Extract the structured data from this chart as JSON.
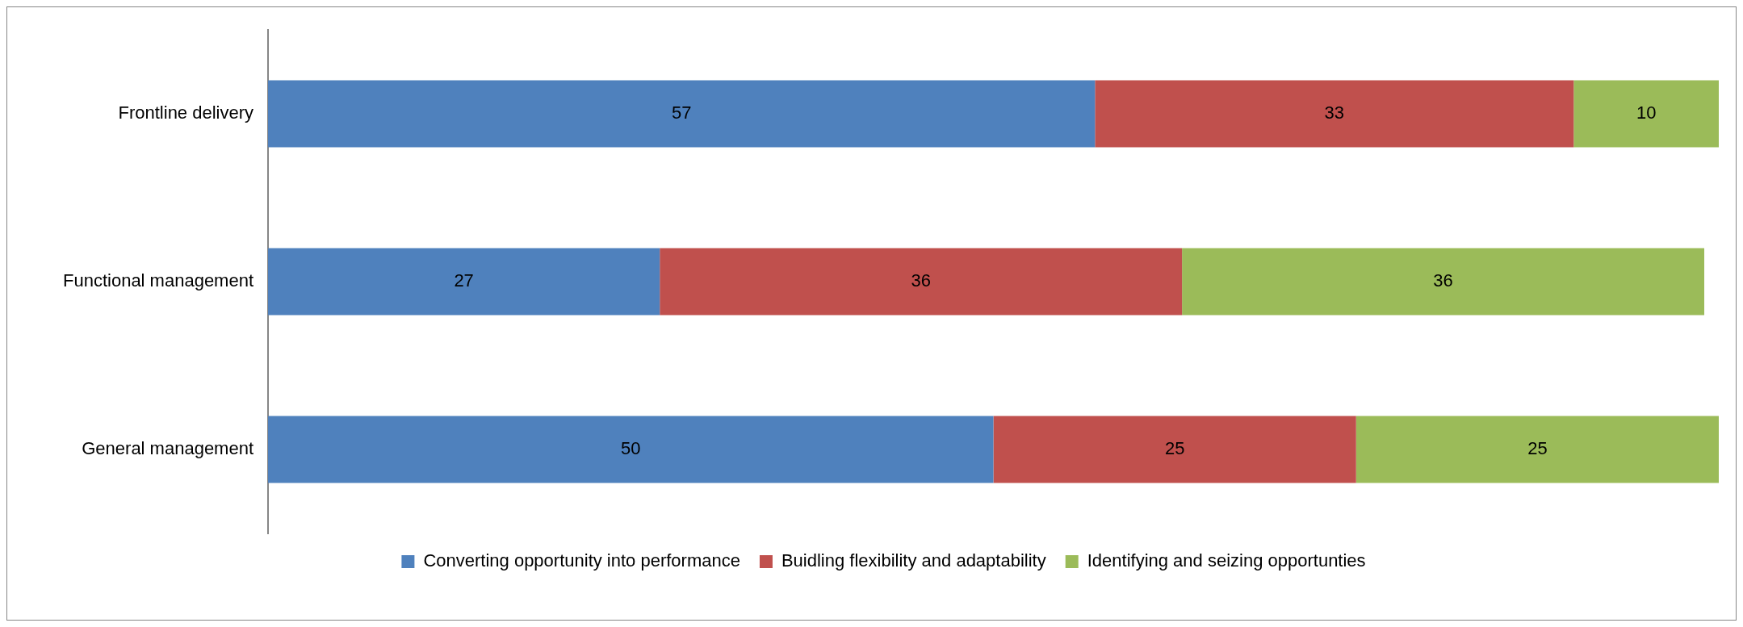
{
  "chart_data": {
    "type": "bar",
    "orientation": "horizontal",
    "stacked": true,
    "categories": [
      "Frontline delivery",
      "Functional management",
      "General management"
    ],
    "series": [
      {
        "name": "Converting opportunity into performance",
        "color": "#4f81bd",
        "values": [
          57,
          27,
          50
        ]
      },
      {
        "name": "Buidling flexibility and adaptability",
        "color": "#c0504d",
        "values": [
          33,
          36,
          25
        ]
      },
      {
        "name": "Identifying and seizing opportunties",
        "color": "#9bbb59",
        "values": [
          10,
          36,
          25
        ]
      }
    ],
    "xlim": [
      0,
      100
    ],
    "tick_labels": "y",
    "data_labels": true,
    "legend": "bottom"
  }
}
